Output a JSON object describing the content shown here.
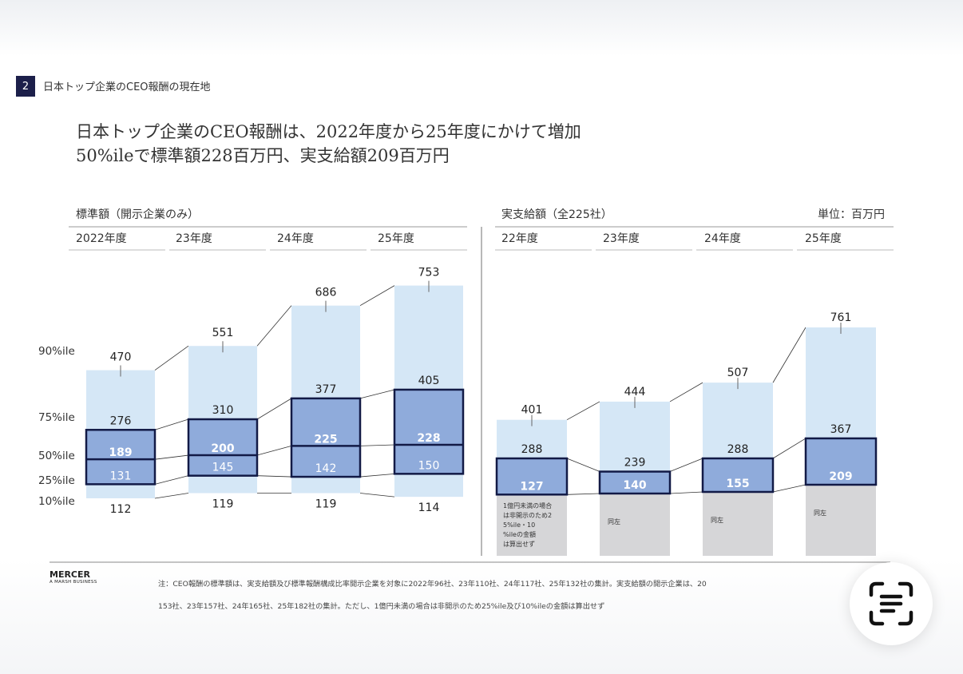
{
  "section": {
    "number": "2",
    "title": "日本トップ企業のCEO報酬の現在地"
  },
  "headline": {
    "line1": "日本トップ企業のCEO報酬は、2022年度から25年度にかけて増加",
    "line2": "50%ileで標準額228百万円、実支給額209百万円"
  },
  "unit_label": "単位：百万円",
  "percentile_labels": [
    "90%ile",
    "75%ile",
    "50%ile",
    "25%ile",
    "10%ile"
  ],
  "footer": {
    "brand": "MERCER",
    "sub_brand": "A MARSH BUSINESS",
    "note_line1": "注：CEO報酬の標準額は、実支給額及び標準報酬構成比率開示企業を対象に2022年96社、23年110社、24年117社、25年132社の集計。実支給額の開示企業は、20",
    "note_line2": "153社、23年157社、24年165社、25年182社の集計。ただし、1億円未満の場合は非開示のため25%ile及び10%ileの金額は算出せず"
  },
  "colors": {
    "light_bar": "#d5e7f6",
    "mid_box": "#8fabdb",
    "box_border": "#121a46",
    "grey_bar": "#d6d6d8",
    "accent": "#1c1f4a"
  },
  "icons": {
    "scan": "text-scan-icon"
  },
  "chart_data": [
    {
      "type": "bar",
      "title": "標準額（開示企業のみ）",
      "categories": [
        "2022年度",
        "23年度",
        "24年度",
        "25年度"
      ],
      "series": [
        {
          "name": "90%ile",
          "values": [
            470,
            551,
            686,
            753
          ]
        },
        {
          "name": "75%ile",
          "values": [
            276,
            310,
            377,
            405
          ]
        },
        {
          "name": "50%ile",
          "values": [
            189,
            200,
            225,
            228
          ]
        },
        {
          "name": "25%ile",
          "values": [
            131,
            145,
            142,
            150
          ]
        },
        {
          "name": "10%ile",
          "values": [
            112,
            119,
            119,
            114
          ]
        }
      ]
    },
    {
      "type": "bar",
      "title": "実支給額（全225社）",
      "categories": [
        "22年度",
        "23年度",
        "24年度",
        "25年度"
      ],
      "series": [
        {
          "name": "90%ile",
          "values": [
            401,
            444,
            507,
            761
          ]
        },
        {
          "name": "75%ile",
          "values": [
            288,
            239,
            288,
            367
          ]
        },
        {
          "name": "50%ile",
          "values": [
            127,
            140,
            155,
            209
          ]
        }
      ],
      "notes": [
        "1億円未満の場合は非開示のため25%ile・10%ileの金額は算出せず",
        "同左",
        "同左",
        "同左"
      ]
    }
  ]
}
